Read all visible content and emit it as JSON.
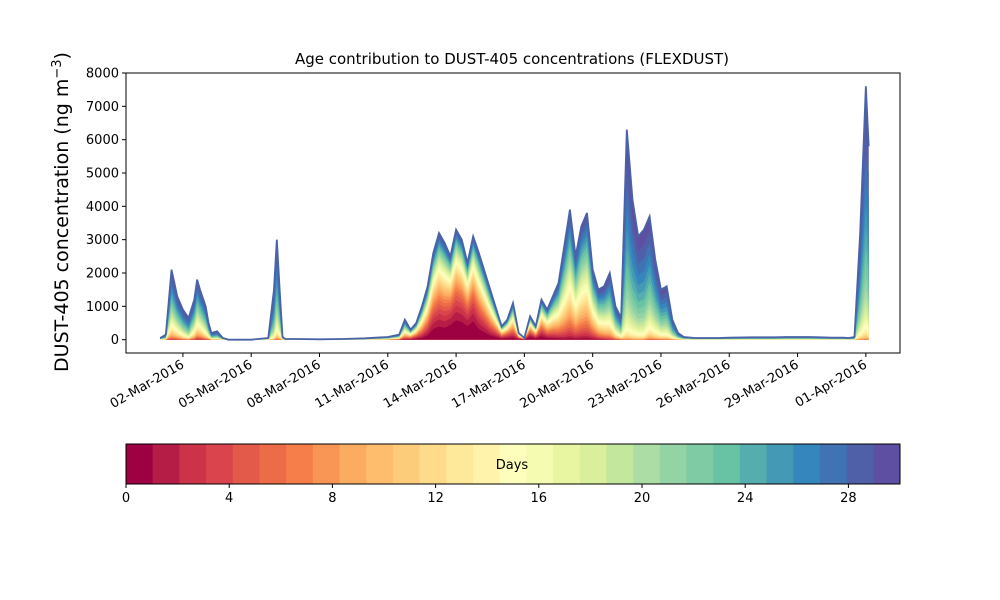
{
  "chart_data": {
    "type": "area",
    "title": "Age contribution to DUST-405 concentrations (FLEXDUST)",
    "ylabel_main": "DUST-405 concentration (ng m",
    "ylabel_sup": "−3",
    "ylabel_close": ")",
    "xlabel": "",
    "ylim": [
      -400,
      8000
    ],
    "yticks": [
      0,
      1000,
      2000,
      3000,
      4000,
      5000,
      6000,
      7000,
      8000
    ],
    "xlim": [
      "2016-02-28T12:00",
      "2016-04-02T12:00"
    ],
    "xticks": [
      "02-Mar-2016",
      "05-Mar-2016",
      "08-Mar-2016",
      "11-Mar-2016",
      "14-Mar-2016",
      "17-Mar-2016",
      "20-Mar-2016",
      "23-Mar-2016",
      "26-Mar-2016",
      "29-Mar-2016",
      "01-Apr-2016"
    ],
    "xtick_dates": [
      "2016-03-02T00:00",
      "2016-03-05T00:00",
      "2016-03-08T00:00",
      "2016-03-11T00:00",
      "2016-03-14T00:00",
      "2016-03-17T00:00",
      "2016-03-20T00:00",
      "2016-03-23T00:00",
      "2016-03-26T00:00",
      "2016-03-29T00:00",
      "2016-04-01T00:00"
    ],
    "x": [
      "2016-03-01T00:00",
      "2016-03-01T06:00",
      "2016-03-01T12:00",
      "2016-03-01T15:00",
      "2016-03-01T18:00",
      "2016-03-02T00:00",
      "2016-03-02T06:00",
      "2016-03-02T12:00",
      "2016-03-02T15:00",
      "2016-03-02T18:00",
      "2016-03-03T00:00",
      "2016-03-03T03:00",
      "2016-03-03T06:00",
      "2016-03-03T12:00",
      "2016-03-03T18:00",
      "2016-03-04T00:00",
      "2016-03-05T00:00",
      "2016-03-05T18:00",
      "2016-03-06T00:00",
      "2016-03-06T03:00",
      "2016-03-06T06:00",
      "2016-03-06T09:00",
      "2016-03-06T12:00",
      "2016-03-06T18:00",
      "2016-03-07T00:00",
      "2016-03-08T00:00",
      "2016-03-09T00:00",
      "2016-03-10T00:00",
      "2016-03-11T00:00",
      "2016-03-11T12:00",
      "2016-03-11T18:00",
      "2016-03-12T00:00",
      "2016-03-12T06:00",
      "2016-03-12T12:00",
      "2016-03-12T18:00",
      "2016-03-13T00:00",
      "2016-03-13T06:00",
      "2016-03-13T12:00",
      "2016-03-13T18:00",
      "2016-03-14T00:00",
      "2016-03-14T06:00",
      "2016-03-14T12:00",
      "2016-03-14T18:00",
      "2016-03-15T00:00",
      "2016-03-15T12:00",
      "2016-03-16T00:00",
      "2016-03-16T06:00",
      "2016-03-16T12:00",
      "2016-03-16T18:00",
      "2016-03-17T00:00",
      "2016-03-17T06:00",
      "2016-03-17T12:00",
      "2016-03-17T18:00",
      "2016-03-18T00:00",
      "2016-03-18T06:00",
      "2016-03-18T12:00",
      "2016-03-18T18:00",
      "2016-03-19T00:00",
      "2016-03-19T06:00",
      "2016-03-19T12:00",
      "2016-03-19T18:00",
      "2016-03-20T00:00",
      "2016-03-20T06:00",
      "2016-03-20T12:00",
      "2016-03-20T18:00",
      "2016-03-21T00:00",
      "2016-03-21T06:00",
      "2016-03-21T12:00",
      "2016-03-21T18:00",
      "2016-03-22T00:00",
      "2016-03-22T06:00",
      "2016-03-22T12:00",
      "2016-03-22T18:00",
      "2016-03-23T00:00",
      "2016-03-23T06:00",
      "2016-03-23T12:00",
      "2016-03-23T18:00",
      "2016-03-24T00:00",
      "2016-03-24T12:00",
      "2016-03-25T00:00",
      "2016-03-25T12:00",
      "2016-03-26T00:00",
      "2016-03-27T00:00",
      "2016-03-28T00:00",
      "2016-03-28T12:00",
      "2016-03-29T00:00",
      "2016-03-29T12:00",
      "2016-03-30T00:00",
      "2016-03-30T12:00",
      "2016-03-31T00:00",
      "2016-03-31T06:00",
      "2016-03-31T12:00",
      "2016-03-31T18:00",
      "2016-04-01T00:00",
      "2016-04-01T03:00"
    ],
    "total": [
      50,
      150,
      2100,
      1700,
      1300,
      900,
      650,
      1200,
      1800,
      1500,
      1000,
      500,
      200,
      250,
      50,
      0,
      0,
      50,
      1500,
      3000,
      1500,
      80,
      20,
      20,
      20,
      10,
      20,
      40,
      80,
      150,
      600,
      300,
      500,
      1000,
      1600,
      2600,
      3200,
      2900,
      2500,
      3300,
      3000,
      2300,
      3100,
      2600,
      1500,
      400,
      600,
      1100,
      200,
      50,
      700,
      400,
      1200,
      900,
      1300,
      1700,
      2800,
      3900,
      2500,
      3400,
      3800,
      2100,
      1500,
      1600,
      2000,
      1000,
      650,
      6300,
      4200,
      3100,
      3300,
      3700,
      2400,
      1500,
      1600,
      600,
      200,
      80,
      50,
      50,
      50,
      60,
      70,
      70,
      80,
      80,
      80,
      70,
      60,
      60,
      50,
      80,
      3200,
      7600,
      5800
    ],
    "young_fraction": [
      0.9,
      0.9,
      0.8,
      0.8,
      0.8,
      0.85,
      0.9,
      0.8,
      0.75,
      0.75,
      0.8,
      0.8,
      0.9,
      0.9,
      0.9,
      0.9,
      0.9,
      0.9,
      0.95,
      0.9,
      0.9,
      0.9,
      0.9,
      0.9,
      0.9,
      0.9,
      0.9,
      0.9,
      0.8,
      0.7,
      0.6,
      0.5,
      0.45,
      0.45,
      0.4,
      0.35,
      0.35,
      0.35,
      0.3,
      0.3,
      0.3,
      0.3,
      0.3,
      0.35,
      0.4,
      0.4,
      0.4,
      0.45,
      0.4,
      0.35,
      0.35,
      0.4,
      0.4,
      0.45,
      0.5,
      0.55,
      0.6,
      0.6,
      0.6,
      0.6,
      0.6,
      0.6,
      0.65,
      0.7,
      0.75,
      0.8,
      0.85,
      0.95,
      0.95,
      0.95,
      0.95,
      0.9,
      0.9,
      0.9,
      0.9,
      0.9,
      0.9,
      0.9,
      0.9,
      0.9,
      0.9,
      0.9,
      0.9,
      0.9,
      0.9,
      0.9,
      0.9,
      0.9,
      0.9,
      0.9,
      0.9,
      0.95,
      0.95,
      0.95,
      0.95
    ],
    "age_bins": [
      0,
      1,
      2,
      3,
      4,
      5,
      6,
      7,
      8,
      9,
      10,
      11,
      12,
      13,
      14,
      15,
      16,
      17,
      18,
      19,
      20,
      21,
      22,
      23,
      24,
      25,
      26,
      27,
      28,
      29,
      30
    ],
    "colors": [
      "#9e0142",
      "#b51d46",
      "#cc3349",
      "#d9444d",
      "#e45a4a",
      "#ec6c47",
      "#f57e4a",
      "#f99656",
      "#fcac61",
      "#fdbd6c",
      "#fdcc7a",
      "#fedb8a",
      "#fee89a",
      "#fff3ab",
      "#fdfebc",
      "#f5fbb1",
      "#e9f6a1",
      "#d9ef9b",
      "#c4e79e",
      "#abdda4",
      "#94d3a4",
      "#7ecba4",
      "#68c2a4",
      "#55adae",
      "#4499b5",
      "#3486bc",
      "#3f73b4",
      "#5060a8",
      "#5e4fa2"
    ],
    "line_color": "#4a63a8",
    "colorbar": {
      "label": "Days",
      "ticks": [
        0,
        4,
        8,
        12,
        16,
        20,
        24,
        28
      ],
      "range": [
        0,
        30
      ]
    }
  }
}
